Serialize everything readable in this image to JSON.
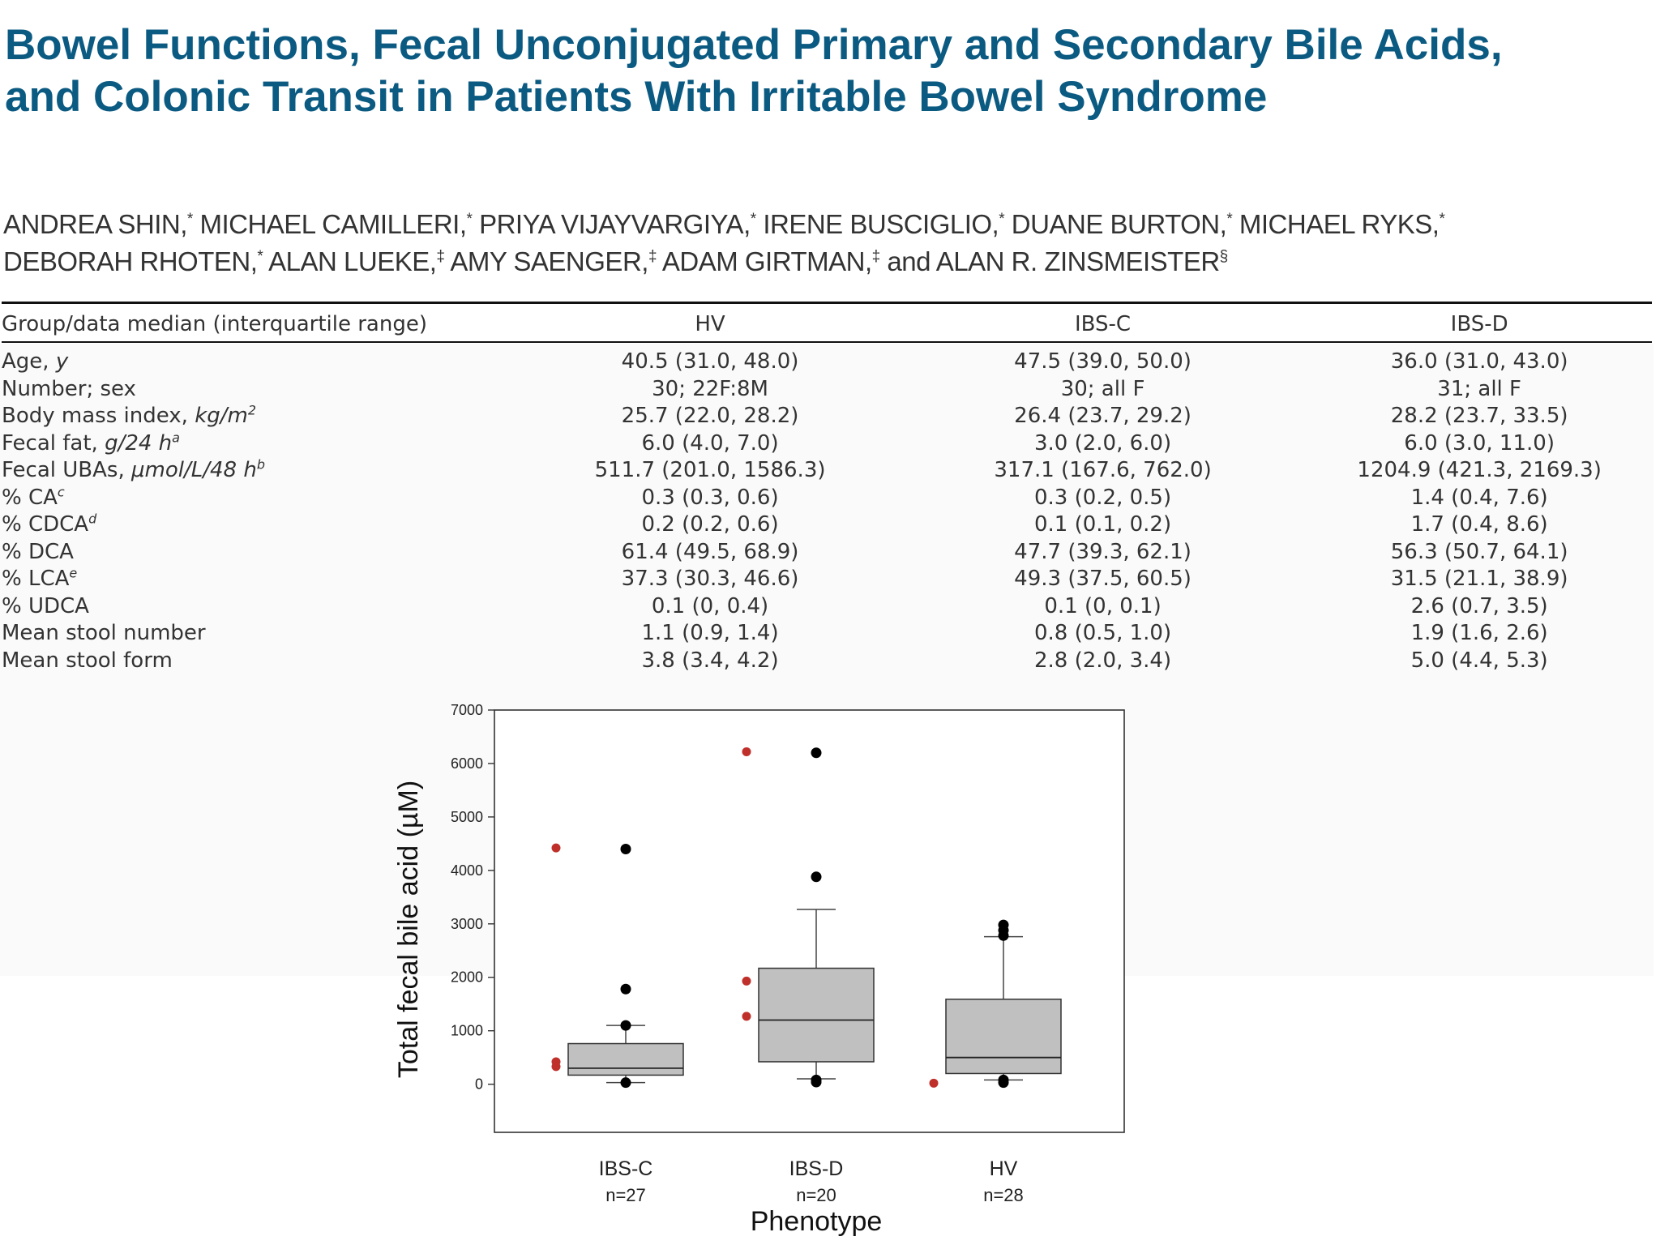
{
  "title": {
    "line1": "Bowel Functions, Fecal Unconjugated Primary and Secondary Bile Acids,",
    "line2": "and Colonic Transit in Patients With Irritable Bowel Syndrome"
  },
  "authors": {
    "line1": [
      {
        "name": "ANDREA SHIN,",
        "mark": "*"
      },
      {
        "name": " MICHAEL CAMILLERI,",
        "mark": "*"
      },
      {
        "name": " PRIYA VIJAYVARGIYA,",
        "mark": "*"
      },
      {
        "name": " IRENE BUSCIGLIO,",
        "mark": "*"
      },
      {
        "name": " DUANE BURTON,",
        "mark": "*"
      },
      {
        "name": " MICHAEL RYKS,",
        "mark": "*"
      }
    ],
    "line2": [
      {
        "name": "DEBORAH RHOTEN,",
        "mark": "*"
      },
      {
        "name": " ALAN LUEKE,",
        "mark": "‡"
      },
      {
        "name": " AMY SAENGER,",
        "mark": "‡"
      },
      {
        "name": " ADAM GIRTMAN,",
        "mark": "‡"
      },
      {
        "name": " and ALAN R. ZINSMEISTER",
        "mark": "§"
      }
    ]
  },
  "table": {
    "headers": [
      "Group/data median (interquartile range)",
      "HV",
      "IBS-C",
      "IBS-D"
    ],
    "rows": [
      {
        "label": "Age, ",
        "unit": "y",
        "sup": "",
        "hv": "40.5 (31.0, 48.0)",
        "ibsc": "47.5 (39.0, 50.0)",
        "ibsd": "36.0 (31.0, 43.0)"
      },
      {
        "label": "Number; sex",
        "unit": "",
        "sup": "",
        "hv": "30; 22F:8M",
        "ibsc": "30; all F",
        "ibsd": "31; all F"
      },
      {
        "label": "Body mass index, ",
        "unit": "kg/m",
        "sup": "2",
        "hv": "25.7 (22.0, 28.2)",
        "ibsc": "26.4 (23.7, 29.2)",
        "ibsd": "28.2 (23.7, 33.5)"
      },
      {
        "label": "Fecal fat, ",
        "unit": "g/24 h",
        "sup": "a",
        "hv": "6.0 (4.0, 7.0)",
        "ibsc": "3.0 (2.0, 6.0)",
        "ibsd": "6.0 (3.0, 11.0)"
      },
      {
        "label": "Fecal UBAs, ",
        "unit": "μmol/L/48 h",
        "sup": "b",
        "hv": "511.7 (201.0, 1586.3)",
        "ibsc": "317.1 (167.6, 762.0)",
        "ibsd": "1204.9 (421.3, 2169.3)"
      },
      {
        "label": "% CA",
        "unit": "",
        "sup": "c",
        "hv": "0.3 (0.3, 0.6)",
        "ibsc": "0.3 (0.2, 0.5)",
        "ibsd": "1.4 (0.4, 7.6)"
      },
      {
        "label": "% CDCA",
        "unit": "",
        "sup": "d",
        "hv": "0.2 (0.2, 0.6)",
        "ibsc": "0.1 (0.1, 0.2)",
        "ibsd": "1.7 (0.4, 8.6)"
      },
      {
        "label": "% DCA",
        "unit": "",
        "sup": "",
        "hv": "61.4 (49.5, 68.9)",
        "ibsc": "47.7 (39.3, 62.1)",
        "ibsd": "56.3 (50.7, 64.1)"
      },
      {
        "label": "% LCA",
        "unit": "",
        "sup": "e",
        "hv": "37.3 (30.3, 46.6)",
        "ibsc": "49.3 (37.5, 60.5)",
        "ibsd": "31.5 (21.1, 38.9)"
      },
      {
        "label": "% UDCA",
        "unit": "",
        "sup": "",
        "hv": "0.1 (0, 0.4)",
        "ibsc": "0.1 (0, 0.1)",
        "ibsd": "2.6 (0.7, 3.5)"
      },
      {
        "label": "Mean stool number",
        "unit": "",
        "sup": "",
        "hv": "1.1 (0.9, 1.4)",
        "ibsc": "0.8 (0.5, 1.0)",
        "ibsd": "1.9 (1.6, 2.6)"
      },
      {
        "label": "Mean stool form",
        "unit": "",
        "sup": "",
        "hv": "3.8 (3.4, 4.2)",
        "ibsc": "2.8 (2.0, 3.4)",
        "ibsd": "5.0 (4.4, 5.3)"
      }
    ]
  },
  "chart_data": {
    "type": "box",
    "xlabel": "Phenotype",
    "ylabel": "Total fecal bile acid (µM)",
    "ylim": [
      -900,
      7000
    ],
    "yticks": [
      0,
      1000,
      2000,
      3000,
      4000,
      5000,
      6000,
      7000
    ],
    "colors": {
      "box": "#c0c0c0",
      "outlier": "#000000",
      "red": "#c0302a"
    },
    "groups": [
      {
        "name": "IBS-C",
        "n": "n=27",
        "q1": 170,
        "median": 300,
        "q3": 760,
        "whisker_low": 30,
        "whisker_high": 1100,
        "outliers": [
          4400,
          1780,
          1100,
          30
        ],
        "red_points": [
          4420,
          420,
          330
        ]
      },
      {
        "name": "IBS-D",
        "n": "n=20",
        "q1": 420,
        "median": 1200,
        "q3": 2170,
        "whisker_low": 100,
        "whisker_high": 3270,
        "outliers": [
          6200,
          3880,
          80,
          40
        ],
        "red_points": [
          6220,
          1930,
          1270
        ]
      },
      {
        "name": "HV",
        "n": "n=28",
        "q1": 200,
        "median": 500,
        "q3": 1590,
        "whisker_low": 80,
        "whisker_high": 2760,
        "outliers": [
          2980,
          2880,
          2780,
          80,
          30
        ],
        "red_points": [
          20
        ]
      }
    ]
  }
}
